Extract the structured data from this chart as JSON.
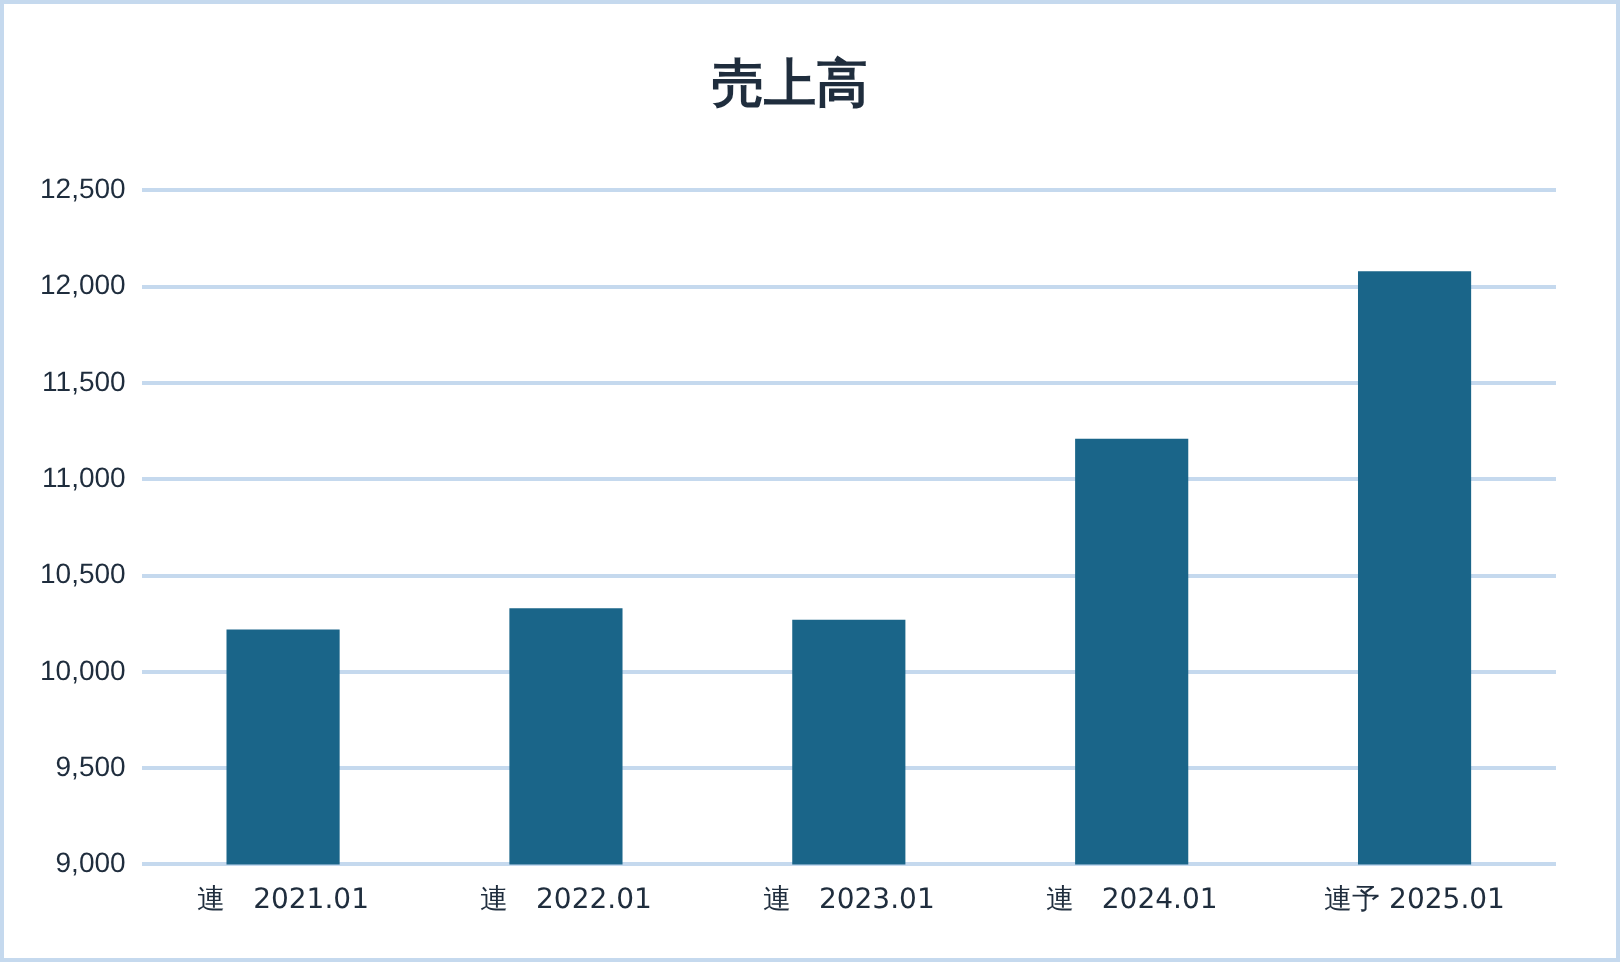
{
  "chart_data": {
    "type": "bar",
    "title": "売上高",
    "categories": [
      "連　2021.01",
      "連　2022.01",
      "連　2023.01",
      "連　2024.01",
      "連予 2025.01"
    ],
    "values": [
      10220,
      10330,
      10270,
      11210,
      12080
    ],
    "color": "#1a6589",
    "ylim": [
      9000,
      12500
    ],
    "yticks": [
      {
        "value": 9000,
        "label": "9,000"
      },
      {
        "value": 9500,
        "label": "9,500"
      },
      {
        "value": 10000,
        "label": "10,000"
      },
      {
        "value": 10500,
        "label": "10,500"
      },
      {
        "value": 11000,
        "label": "11,000"
      },
      {
        "value": 11500,
        "label": "11,500"
      },
      {
        "value": 12000,
        "label": "12,000"
      },
      {
        "value": 12500,
        "label": "12,500"
      }
    ],
    "grid": "y",
    "legend": false
  }
}
